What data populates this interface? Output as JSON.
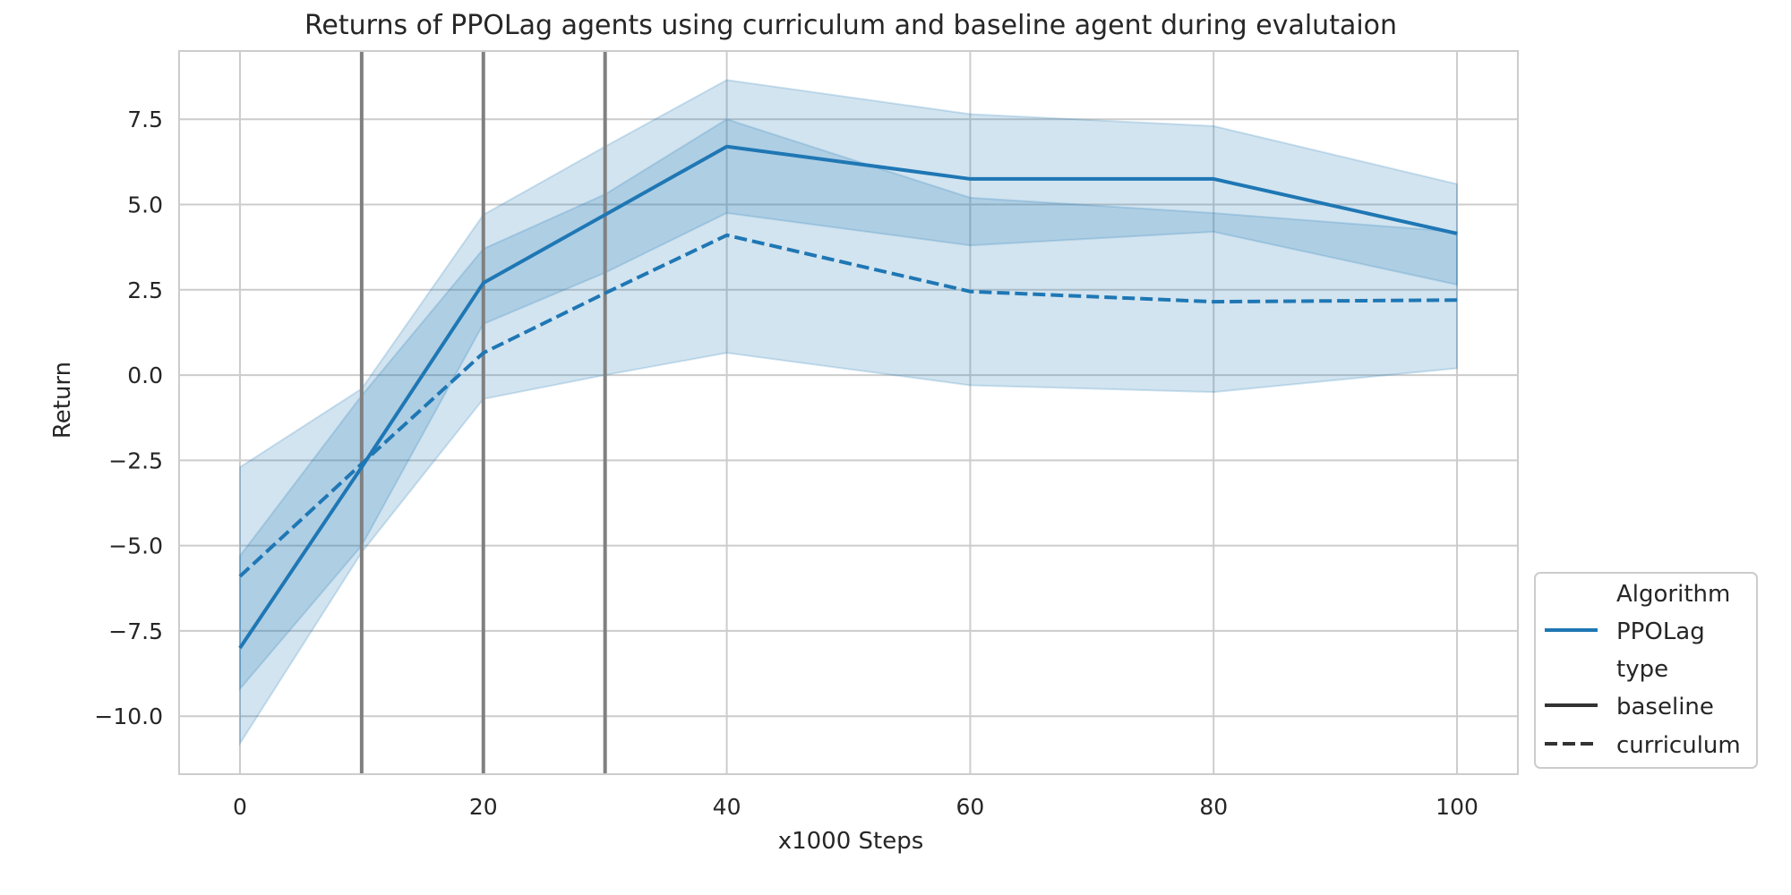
{
  "chart_data": {
    "type": "line",
    "title": "Returns of PPOLag agents using curriculum and baseline agent during evalutaion",
    "xlabel": "x1000 Steps",
    "ylabel": "Return",
    "xlim": [
      -5,
      105
    ],
    "ylim": [
      -11.7,
      9.5
    ],
    "x_ticks": [
      0,
      20,
      40,
      60,
      80,
      100
    ],
    "y_ticks": [
      -10.0,
      -7.5,
      -5.0,
      -2.5,
      0.0,
      2.5,
      5.0,
      7.5
    ],
    "x_tick_labels": [
      "0",
      "20",
      "40",
      "60",
      "80",
      "100"
    ],
    "y_tick_labels": [
      "−10.0",
      "−7.5",
      "−5.0",
      "−2.5",
      "0.0",
      "2.5",
      "5.0",
      "7.5"
    ],
    "grid": true,
    "vertical_markers": [
      10,
      20,
      30
    ],
    "x": [
      0,
      10,
      20,
      30,
      40,
      60,
      80,
      100
    ],
    "series": [
      {
        "name": "baseline",
        "style": "solid",
        "color": "#1f77b4",
        "values": [
          -8.0,
          -2.7,
          2.7,
          4.7,
          6.7,
          5.75,
          5.75,
          4.15
        ],
        "lower": [
          -9.2,
          -5.0,
          1.5,
          3.0,
          4.75,
          3.8,
          4.2,
          2.65
        ],
        "upper": [
          -5.3,
          -0.6,
          3.7,
          5.3,
          7.5,
          5.2,
          4.75,
          4.2
        ]
      },
      {
        "name": "curriculum",
        "style": "dashed",
        "color": "#1f77b4",
        "values": [
          -5.9,
          -2.6,
          0.65,
          2.4,
          4.1,
          2.45,
          2.15,
          2.2
        ],
        "lower": [
          -10.8,
          -5.2,
          -0.7,
          0.0,
          0.65,
          -0.3,
          -0.5,
          0.2
        ],
        "upper": [
          -2.7,
          -0.4,
          4.7,
          6.7,
          8.65,
          7.65,
          7.3,
          5.6
        ]
      }
    ],
    "legend": {
      "placement": "lower-right",
      "heading1": "Algorithm",
      "algorithm": "PPOLag",
      "heading2": "type",
      "baseline": "baseline",
      "curriculum": "curriculum"
    }
  }
}
